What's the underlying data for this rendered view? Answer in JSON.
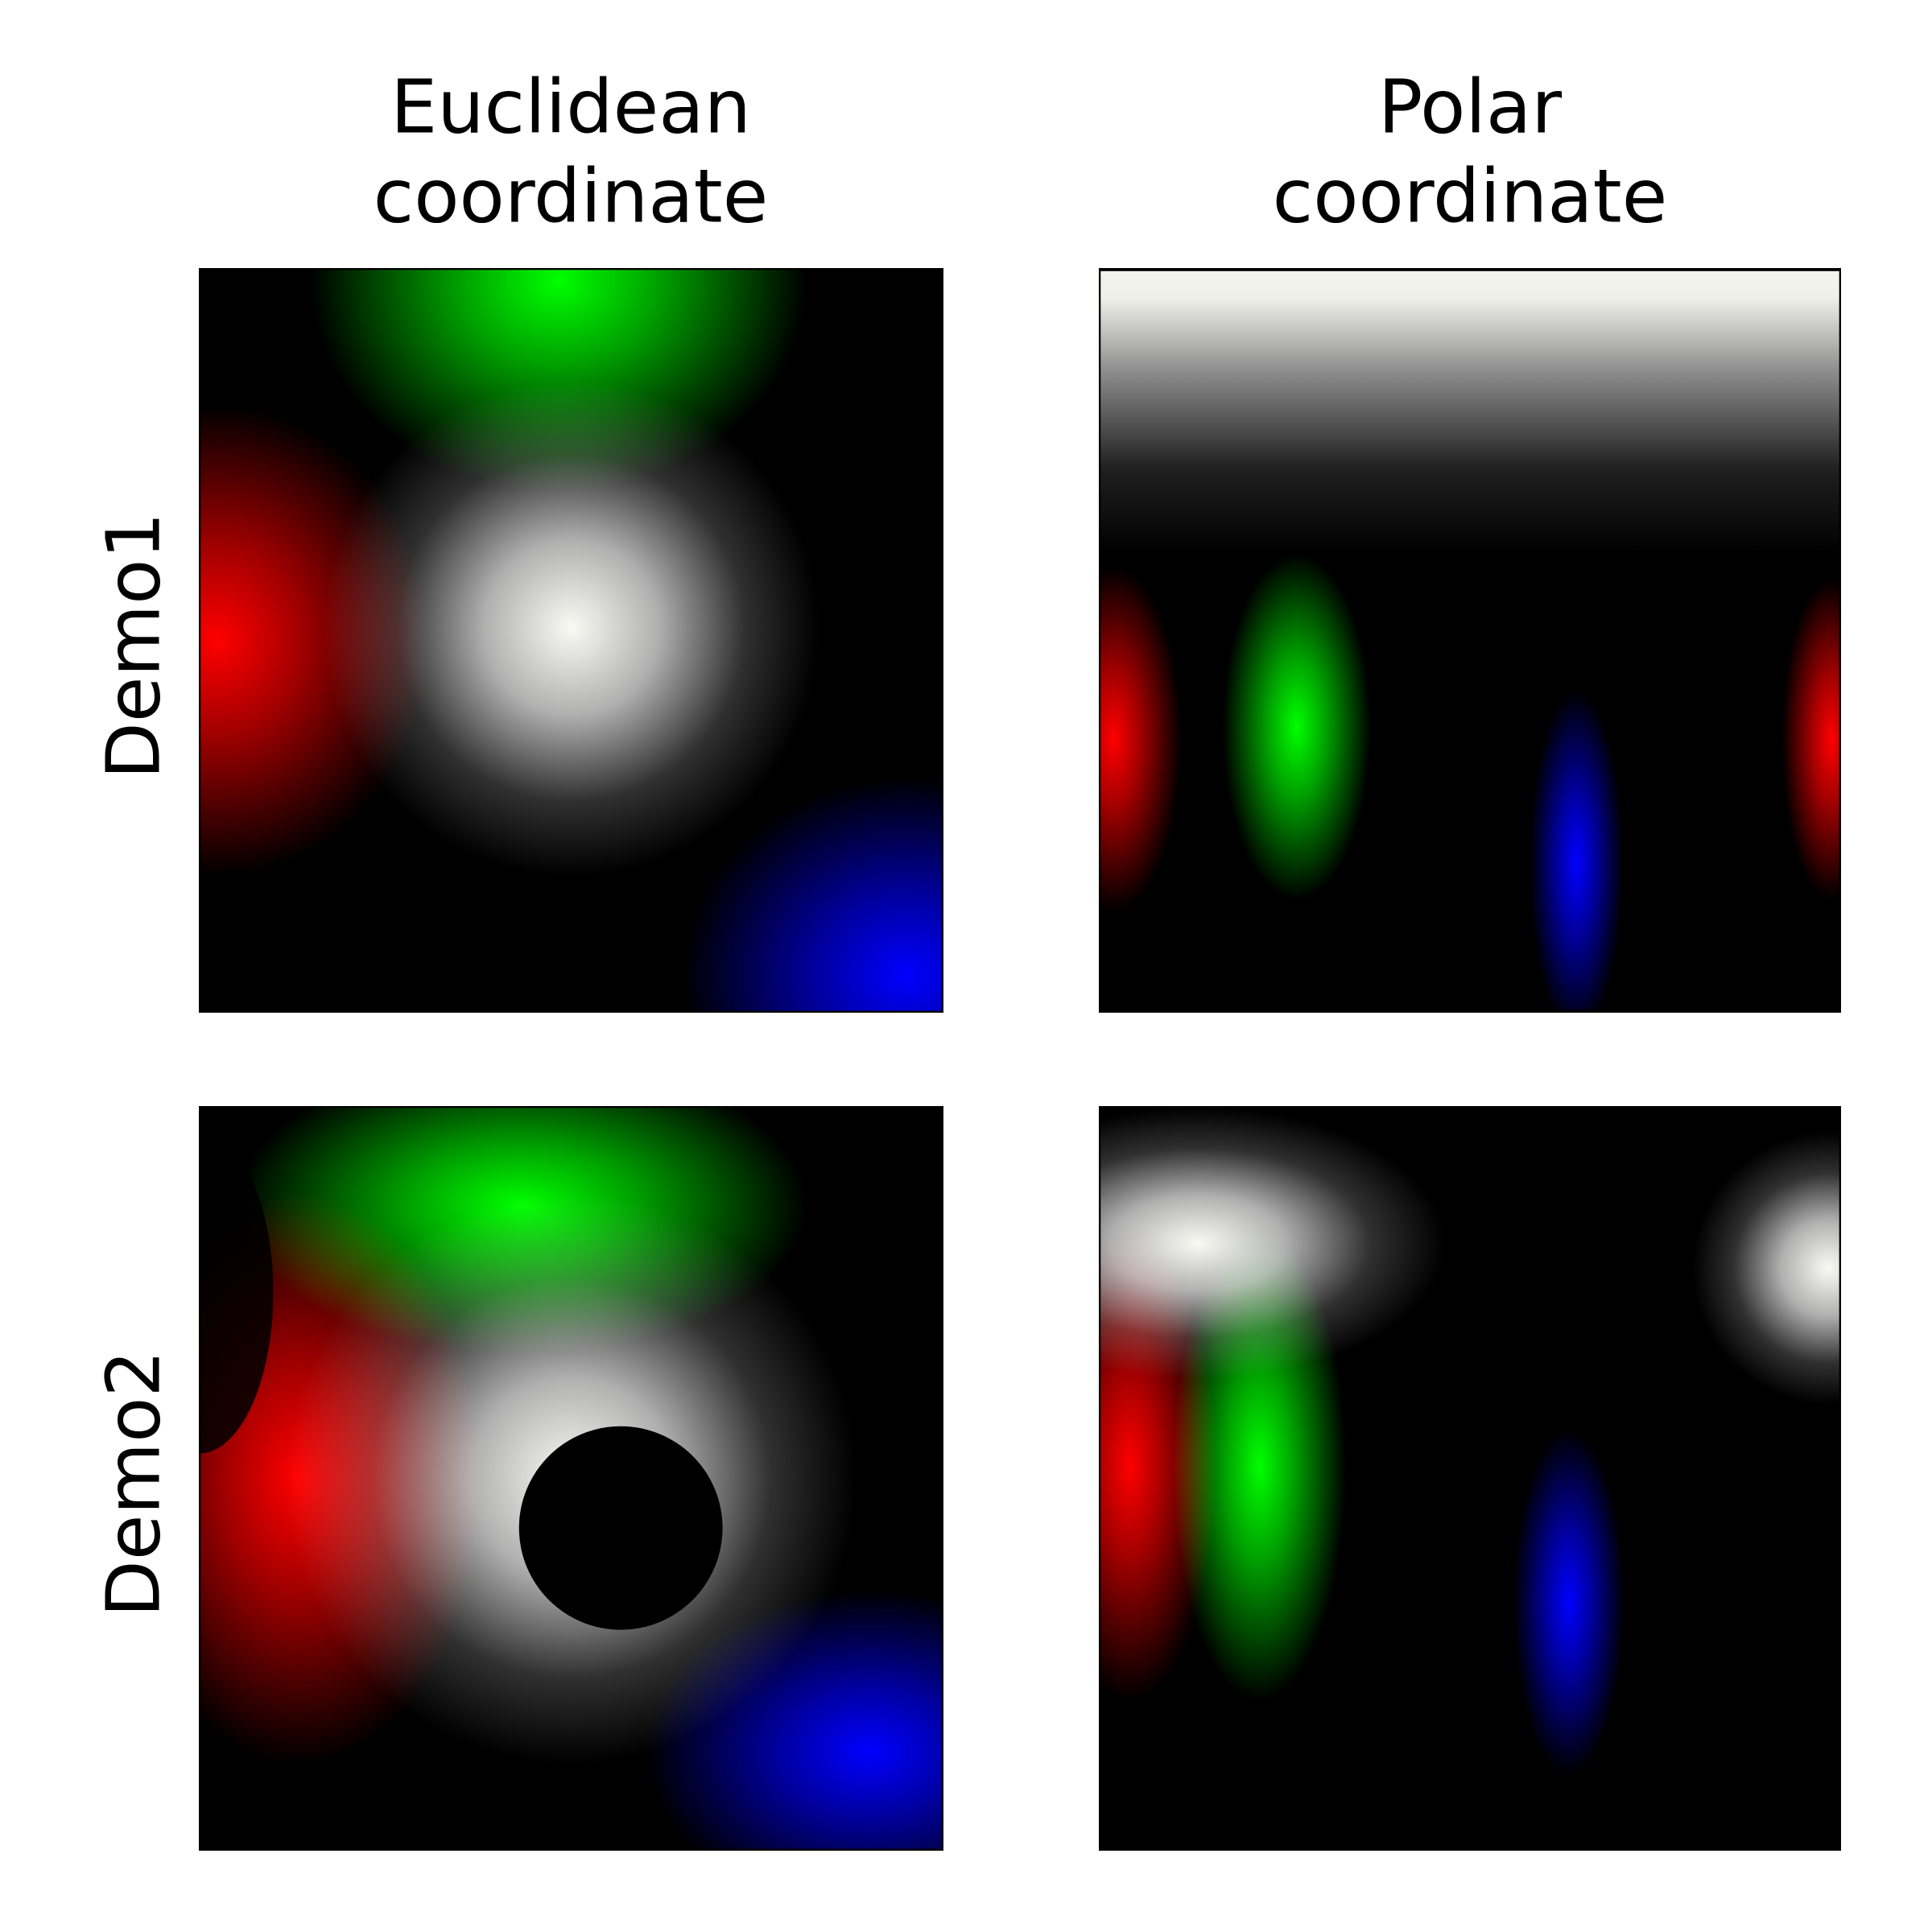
{
  "columns": [
    [
      "Euclidean",
      "coordinate"
    ],
    [
      "Polar",
      "coordinate"
    ]
  ],
  "rows": [
    "Demo1",
    "Demo2"
  ]
}
